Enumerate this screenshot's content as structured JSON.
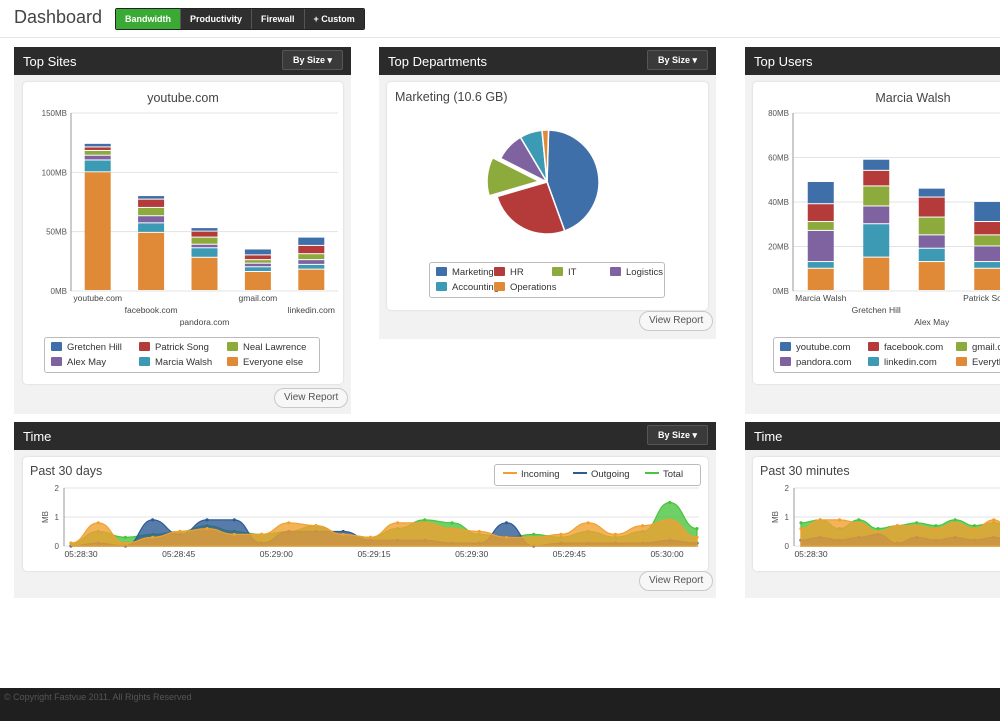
{
  "header": {
    "title": "Dashboard",
    "tabs": [
      {
        "label": "Bandwidth",
        "active": true
      },
      {
        "label": "Productivity",
        "active": false
      },
      {
        "label": "Firewall",
        "active": false
      },
      {
        "label": "+ Custom",
        "active": false
      }
    ]
  },
  "panels": {
    "top_sites": {
      "title": "Top Sites",
      "sort_label": "By Size ▾",
      "view_report": "View Report"
    },
    "top_departments": {
      "title": "Top Departments",
      "sort_label": "By Size ▾",
      "view_report": "View Report"
    },
    "top_users": {
      "title": "Top Users"
    },
    "time": {
      "title": "Time",
      "sort_label": "By Size ▾",
      "view_report": "View Report"
    },
    "time_right": {
      "title": "Time"
    }
  },
  "colors": {
    "blue": "#3f6fa8",
    "red": "#b53b3b",
    "green": "#8dab3d",
    "purple": "#7f62a0",
    "teal": "#3c9ab4",
    "orange": "#e08a38",
    "line_orange": "#f0a030",
    "line_blue": "#2d5b95",
    "line_green": "#4ac43e",
    "tab_active": "#3aaa35"
  },
  "chart_data": [
    {
      "id": "top_sites",
      "type": "bar",
      "stacked": true,
      "title": "youtube.com",
      "categories": [
        "youtube.com",
        "facebook.com",
        "pandora.com",
        "gmail.com",
        "linkedin.com"
      ],
      "y_ticks": [
        "0MB",
        "50MB",
        "100MB",
        "150MB"
      ],
      "ylim": [
        0,
        150
      ],
      "series": [
        {
          "name": "Everyone else",
          "color": "#e08a38",
          "values": [
            100,
            49,
            28,
            16,
            18
          ]
        },
        {
          "name": "Marcia Walsh",
          "color": "#3c9ab4",
          "values": [
            10,
            8,
            8,
            4,
            4
          ]
        },
        {
          "name": "Alex May",
          "color": "#7f62a0",
          "values": [
            4,
            6,
            3,
            3,
            4
          ]
        },
        {
          "name": "Neal Lawrence",
          "color": "#8dab3d",
          "values": [
            4,
            7,
            6,
            3,
            5
          ]
        },
        {
          "name": "Patrick Song",
          "color": "#b53b3b",
          "values": [
            3,
            7,
            5,
            4,
            7
          ]
        },
        {
          "name": "Gretchen Hill",
          "color": "#3f6fa8",
          "values": [
            3,
            3,
            3,
            5,
            7
          ]
        }
      ],
      "legend": [
        "Gretchen Hill",
        "Patrick Song",
        "Neal Lawrence",
        "Alex May",
        "Marcia Walsh",
        "Everyone else"
      ]
    },
    {
      "id": "top_departments",
      "type": "pie",
      "title": "Marketing (10.6 GB)",
      "slices": [
        {
          "name": "Marketing",
          "color": "#3f6fa8",
          "value": 44,
          "exploded": false
        },
        {
          "name": "HR",
          "color": "#b53b3b",
          "value": 26,
          "exploded": false
        },
        {
          "name": "IT",
          "color": "#8dab3d",
          "value": 12,
          "exploded": true
        },
        {
          "name": "Logistics",
          "color": "#7f62a0",
          "value": 9,
          "exploded": false
        },
        {
          "name": "Accounting",
          "color": "#3c9ab4",
          "value": 7,
          "exploded": false
        },
        {
          "name": "Operations",
          "color": "#e08a38",
          "value": 2,
          "exploded": false
        }
      ],
      "legend": [
        "Marketing",
        "HR",
        "IT",
        "Logistics",
        "Accounting",
        "Operations"
      ]
    },
    {
      "id": "top_users",
      "type": "bar",
      "stacked": true,
      "title": "Marcia Walsh",
      "categories": [
        "Marcia Walsh",
        "Gretchen Hill",
        "Alex May",
        "Patrick Song"
      ],
      "y_ticks": [
        "0MB",
        "20MB",
        "40MB",
        "60MB",
        "80MB"
      ],
      "ylim": [
        0,
        80
      ],
      "series": [
        {
          "name": "Everything else",
          "color": "#e08a38",
          "values": [
            10,
            15,
            13,
            10
          ]
        },
        {
          "name": "linkedin.com",
          "color": "#3c9ab4",
          "values": [
            3,
            15,
            6,
            3
          ]
        },
        {
          "name": "pandora.com",
          "color": "#7f62a0",
          "values": [
            14,
            8,
            6,
            7
          ]
        },
        {
          "name": "gmail.com",
          "color": "#8dab3d",
          "values": [
            4,
            9,
            8,
            5
          ]
        },
        {
          "name": "facebook.com",
          "color": "#b53b3b",
          "values": [
            8,
            7,
            9,
            6
          ]
        },
        {
          "name": "youtube.com",
          "color": "#3f6fa8",
          "values": [
            10,
            5,
            4,
            9
          ]
        }
      ],
      "legend": [
        "youtube.com",
        "facebook.com",
        "gmail.com",
        "pandora.com",
        "linkedin.com",
        "Everything else"
      ]
    },
    {
      "id": "time",
      "type": "area",
      "title": "Past 30 days",
      "ylabel": "MB",
      "y_ticks": [
        "0",
        "1",
        "2"
      ],
      "ylim": [
        0,
        2
      ],
      "x_ticks": [
        "05:28:30",
        "05:28:45",
        "05:29:00",
        "05:29:15",
        "05:29:30",
        "05:29:45",
        "05:30:00"
      ],
      "series": [
        {
          "name": "Total",
          "color": "#4ac43e",
          "values": [
            0.1,
            0.5,
            0.3,
            0.4,
            0.5,
            0.7,
            0.5,
            0.4,
            0.5,
            0.7,
            0.4,
            0.3,
            0.6,
            0.9,
            0.8,
            0.4,
            0.3,
            0.4,
            0.3,
            0.5,
            0.3,
            0.5,
            1.5,
            0.6
          ]
        },
        {
          "name": "Outgoing",
          "color": "#2d5b95",
          "values": [
            0.0,
            0.1,
            0.0,
            0.9,
            0.4,
            0.9,
            0.9,
            0.1,
            0.5,
            0.5,
            0.5,
            0.2,
            0.2,
            0.2,
            0.1,
            0.1,
            0.8,
            0.0,
            0.1,
            0.1,
            0.1,
            0.1,
            0.2,
            0.1
          ]
        },
        {
          "name": "Incoming",
          "color": "#f0a030",
          "values": [
            0.1,
            0.8,
            0.1,
            0.3,
            0.5,
            0.6,
            0.4,
            0.4,
            0.8,
            0.7,
            0.4,
            0.3,
            0.8,
            0.8,
            0.6,
            0.5,
            0.3,
            0.3,
            0.4,
            0.8,
            0.4,
            0.7,
            0.9,
            0.3
          ]
        }
      ],
      "legend": [
        "Incoming",
        "Outgoing",
        "Total"
      ]
    },
    {
      "id": "time_right",
      "type": "area",
      "title": "Past 30 minutes",
      "ylabel": "MB",
      "y_ticks": [
        "0",
        "1",
        "2"
      ],
      "ylim": [
        0,
        2
      ],
      "x_ticks": [
        "05:28:30"
      ],
      "series": [
        {
          "name": "Total",
          "color": "#4ac43e",
          "values": [
            0.8,
            0.9,
            0.6,
            0.9,
            0.6,
            0.7,
            0.8,
            0.7,
            0.9,
            0.7,
            0.8,
            0.6
          ]
        },
        {
          "name": "Outgoing",
          "color": "#2d5b95",
          "values": [
            0.2,
            0.3,
            0.2,
            0.3,
            0.4,
            0.1,
            0.3,
            0.2,
            0.3,
            0.2,
            0.3,
            0.2
          ]
        },
        {
          "name": "Incoming",
          "color": "#f0a030",
          "values": [
            0.6,
            0.9,
            0.9,
            0.8,
            0.5,
            0.7,
            0.7,
            0.6,
            0.8,
            0.6,
            0.9,
            0.5
          ]
        }
      ]
    }
  ],
  "footer": {
    "text": "© Copyright Fastvue 2011. All Rights Reserved"
  }
}
